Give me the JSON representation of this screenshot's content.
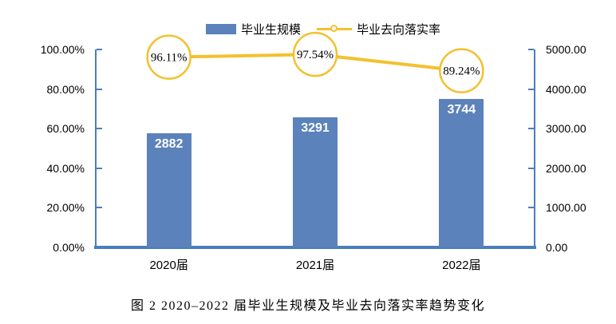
{
  "figure": {
    "caption": "图 2 2020–2022 届毕业生规模及毕业去向落实率趋势变化"
  },
  "legend": {
    "bar_label": "毕业生规模",
    "line_label": "毕业去向落实率"
  },
  "chart_data": {
    "type": "combo",
    "title": "",
    "categories": [
      "2020届",
      "2021届",
      "2022届"
    ],
    "series": [
      {
        "name": "毕业生规模",
        "type": "bar",
        "axis": "right",
        "values": [
          2882,
          3291,
          3744
        ],
        "labels": [
          "2882",
          "3291",
          "3744"
        ]
      },
      {
        "name": "毕业去向落实率",
        "type": "line",
        "axis": "left",
        "values": [
          96.11,
          97.54,
          89.24
        ],
        "labels": [
          "96.11%",
          "97.54%",
          "89.24%"
        ]
      }
    ],
    "left_axis": {
      "min": 0,
      "max": 100,
      "ticks": [
        "100.00%",
        "80.00%",
        "60.00%",
        "40.00%",
        "20.00%",
        "0.00%"
      ]
    },
    "right_axis": {
      "min": 0,
      "max": 5000,
      "ticks": [
        "5000.00",
        "4000.00",
        "3000.00",
        "2000.00",
        "1000.00",
        "0.00"
      ]
    },
    "legend_position": "top",
    "grid": false,
    "colors": {
      "bar": "#5B82BB",
      "line": "#F2C12E",
      "axis": "#4A7EBB",
      "bar_value_text": "#FFFFFF",
      "text": "#000000"
    }
  }
}
